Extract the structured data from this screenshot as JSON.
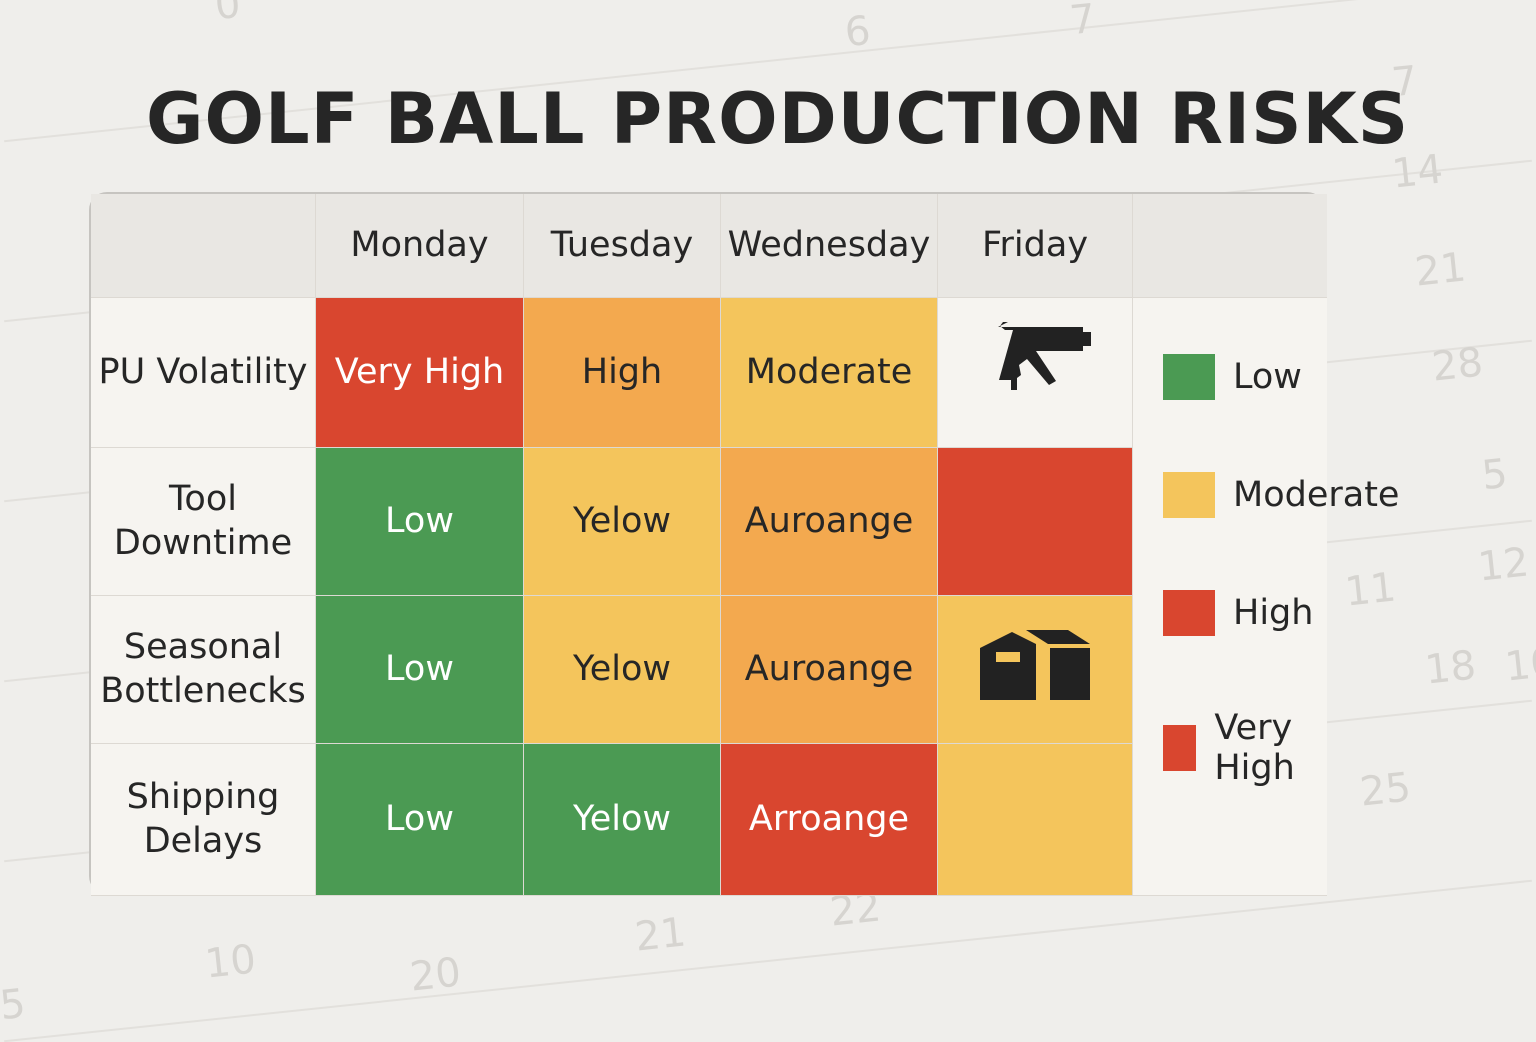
{
  "title": "GOLF BALL PRODUCTION RISKS",
  "background_numbers": [
    "0",
    "7",
    "6",
    "7",
    "14",
    "21",
    "28",
    "5",
    "12",
    "11",
    "10",
    "18",
    "25",
    "22",
    "21",
    "20",
    "10",
    "5"
  ],
  "colors": {
    "low": "#4b9a53",
    "moderate": "#f4c55c",
    "elevated": "#f3a94f",
    "high": "#d9462f",
    "neutral": "#f6f4f0"
  },
  "chart_data": {
    "type": "heatmap",
    "title": "GOLF BALL PRODUCTION RISKS",
    "columns": [
      "Monday",
      "Tuesday",
      "Wednesday",
      "Friday"
    ],
    "rows": [
      "PU Volatility",
      "Tool Downtime",
      "Seasonal Bottlenecks",
      "Shipping Delays"
    ],
    "cells": [
      [
        {
          "label": "Very High",
          "color": "high"
        },
        {
          "label": "High",
          "color": "elevated"
        },
        {
          "label": "Moderate",
          "color": "moderate"
        },
        {
          "label": "",
          "color": "neutral",
          "icon": "glue-gun-icon"
        }
      ],
      [
        {
          "label": "Low",
          "color": "low"
        },
        {
          "label": "Yelow",
          "color": "moderate"
        },
        {
          "label": "Auroange",
          "color": "elevated"
        },
        {
          "label": "",
          "color": "high"
        }
      ],
      [
        {
          "label": "Low",
          "color": "low"
        },
        {
          "label": "Yelow",
          "color": "moderate"
        },
        {
          "label": "Auroange",
          "color": "elevated"
        },
        {
          "label": "",
          "color": "moderate",
          "icon": "warehouse-icon"
        }
      ],
      [
        {
          "label": "Low",
          "color": "low"
        },
        {
          "label": "Yelow",
          "color": "low"
        },
        {
          "label": "Arroange",
          "color": "high"
        },
        {
          "label": "",
          "color": "moderate"
        }
      ]
    ],
    "legend": [
      {
        "label": "Low",
        "color": "low"
      },
      {
        "label": "Moderate",
        "color": "moderate"
      },
      {
        "label": "High",
        "color": "high"
      },
      {
        "label": "Very High",
        "color": "high"
      }
    ],
    "legend_position": "right"
  }
}
